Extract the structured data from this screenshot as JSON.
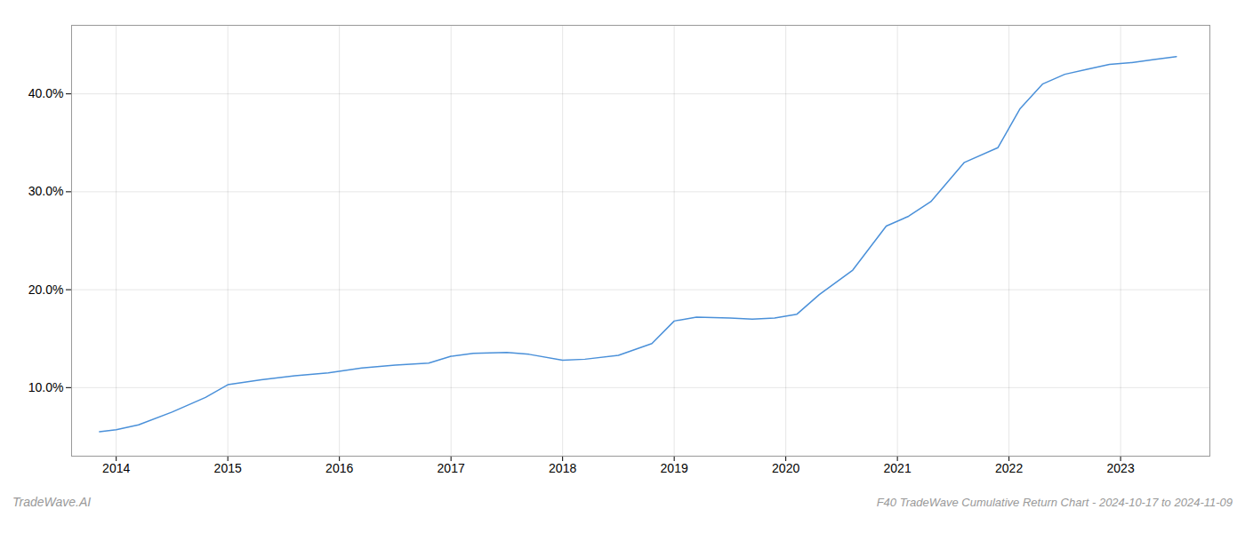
{
  "chart_data": {
    "type": "line",
    "title": "F40 TradeWave Cumulative Return Chart - 2024-10-17 to 2024-11-09",
    "annotations": [
      "TradeWave.AI"
    ],
    "x": [
      2013.85,
      2014.0,
      2014.2,
      2014.5,
      2014.8,
      2015.0,
      2015.3,
      2015.6,
      2015.9,
      2016.2,
      2016.5,
      2016.8,
      2017.0,
      2017.2,
      2017.5,
      2017.7,
      2018.0,
      2018.2,
      2018.5,
      2018.8,
      2019.0,
      2019.2,
      2019.5,
      2019.7,
      2019.9,
      2020.1,
      2020.3,
      2020.6,
      2020.9,
      2021.1,
      2021.3,
      2021.6,
      2021.9,
      2022.1,
      2022.3,
      2022.5,
      2022.7,
      2022.9,
      2023.1,
      2023.3,
      2023.5
    ],
    "values": [
      5.5,
      5.7,
      6.2,
      7.5,
      9.0,
      10.3,
      10.8,
      11.2,
      11.5,
      12.0,
      12.3,
      12.5,
      13.2,
      13.5,
      13.6,
      13.4,
      12.8,
      12.9,
      13.3,
      14.5,
      16.8,
      17.2,
      17.1,
      17.0,
      17.1,
      17.5,
      19.5,
      22.0,
      26.5,
      27.5,
      29.0,
      33.0,
      34.5,
      38.5,
      41.0,
      42.0,
      42.5,
      43.0,
      43.2,
      43.5,
      43.8
    ],
    "color": "#4a90d9",
    "xlim": [
      2013.6,
      2023.8
    ],
    "xticks": [
      2014,
      2015,
      2016,
      2017,
      2018,
      2019,
      2020,
      2021,
      2022,
      2023
    ],
    "ylim": [
      3,
      47
    ],
    "yticks": [
      {
        "value": 10,
        "label": "10.0%"
      },
      {
        "value": 20,
        "label": "20.0%"
      },
      {
        "value": 30,
        "label": "30.0%"
      },
      {
        "value": 40,
        "label": "40.0%"
      }
    ],
    "grid": true
  }
}
